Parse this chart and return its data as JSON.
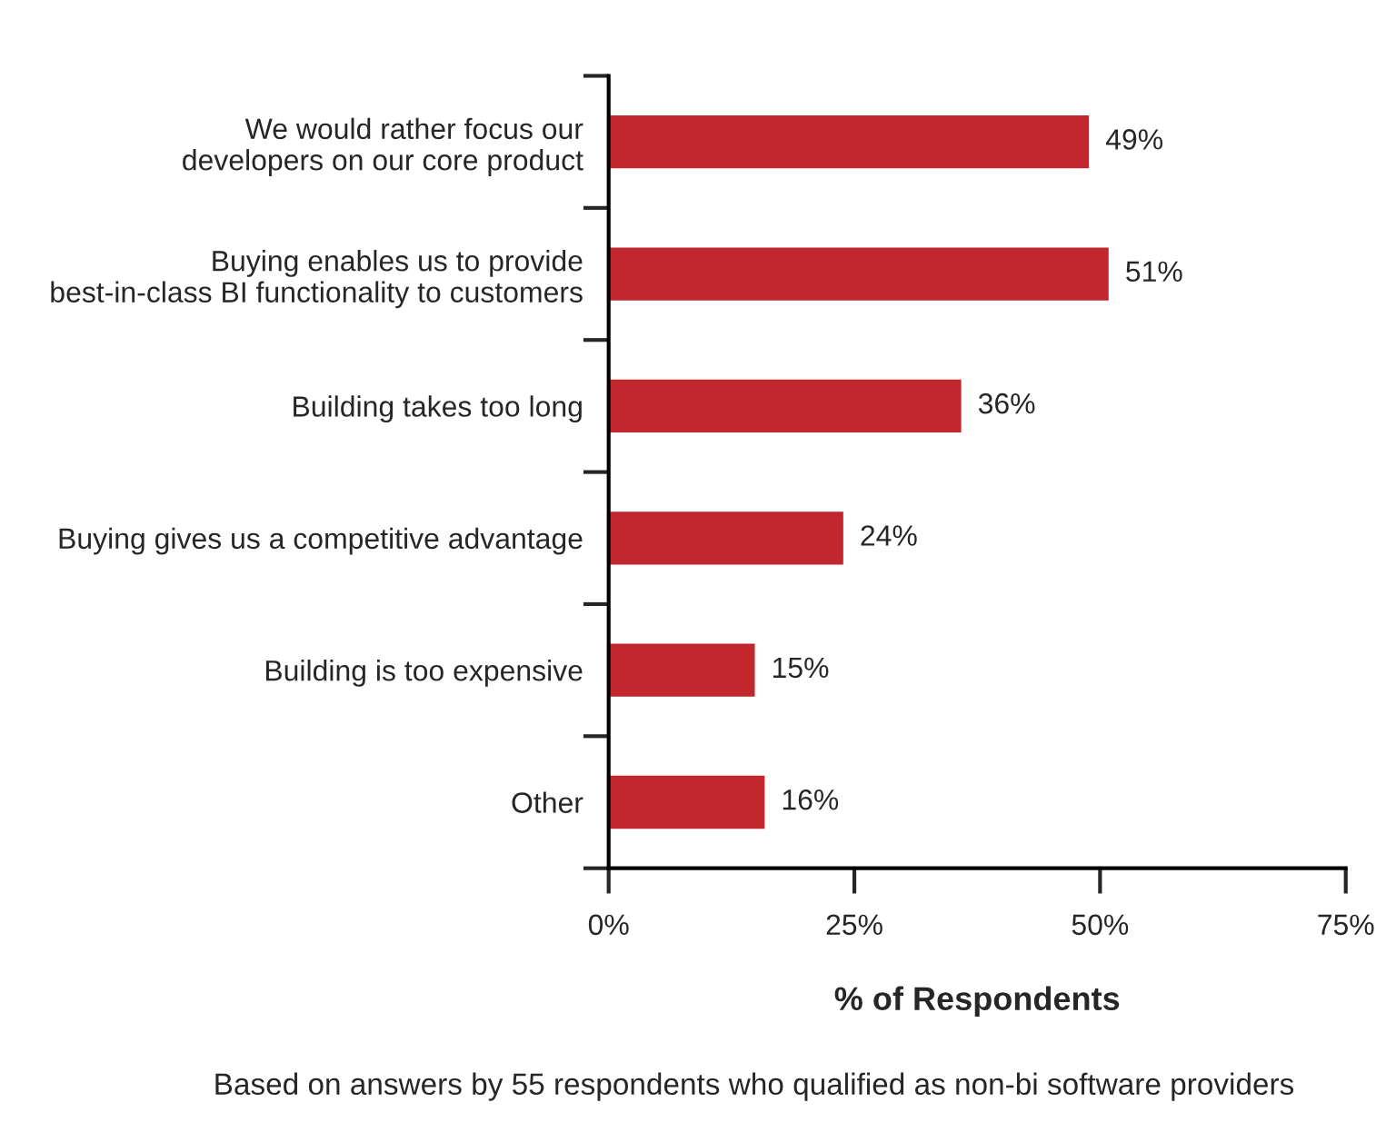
{
  "chart_data": {
    "type": "bar",
    "orientation": "horizontal",
    "categories": [
      "We would rather focus our\ndevelopers on our core product",
      "Buying enables us to provide\nbest-in-class BI functionality to customers",
      "Building takes too long",
      "Buying gives us a competitive advantage",
      "Building is too expensive",
      "Other"
    ],
    "values": [
      49,
      51,
      36,
      24,
      15,
      16
    ],
    "value_labels": [
      "49%",
      "51%",
      "36%",
      "24%",
      "15%",
      "16%"
    ],
    "color": "#c1272d",
    "xlim": [
      0,
      75
    ],
    "xticks": [
      {
        "value": 0,
        "label": "0%"
      },
      {
        "value": 25,
        "label": "25%"
      },
      {
        "value": 50,
        "label": "50%"
      },
      {
        "value": 75,
        "label": "75%"
      }
    ],
    "xlabel": "% of Respondents",
    "annotations": [
      "Based on answers by 55 respondents who qualified as non-bi software providers"
    ],
    "grid": false
  }
}
